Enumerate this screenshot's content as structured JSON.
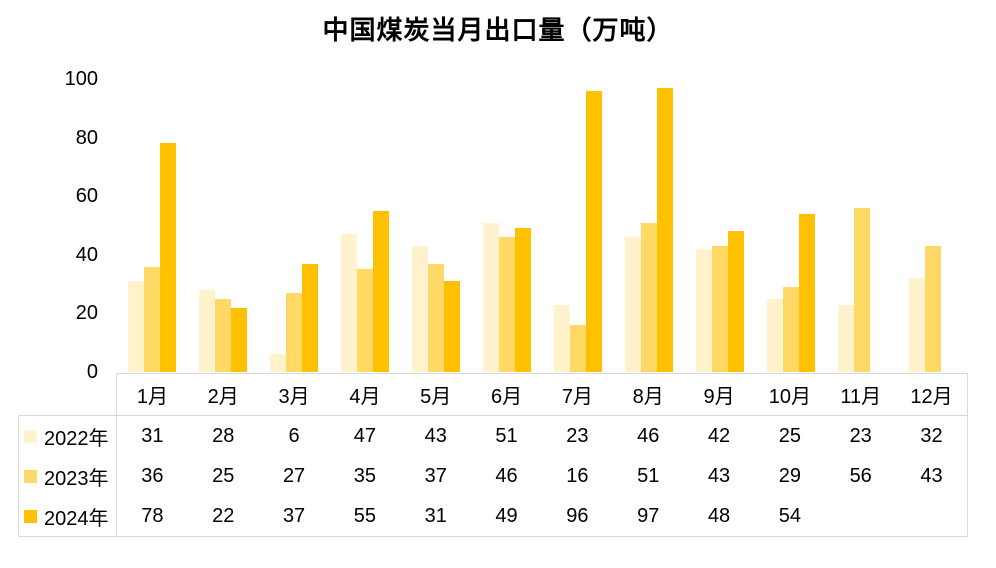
{
  "title": "中国煤炭当月出口量（万吨）",
  "colors": {
    "series_2022": "#FFF2CC",
    "series_2023": "#FFD966",
    "series_2024": "#FFC000",
    "table_border": "#D9D9D9",
    "text": "#000000",
    "background": "#FFFFFF"
  },
  "chart_data": {
    "type": "bar",
    "title": "中国煤炭当月出口量（万吨）",
    "categories": [
      "1月",
      "2月",
      "3月",
      "4月",
      "5月",
      "6月",
      "7月",
      "8月",
      "9月",
      "10月",
      "11月",
      "12月"
    ],
    "series": [
      {
        "name": "2022年",
        "color": "#FFF2CC",
        "values": [
          31,
          28,
          6,
          47,
          43,
          51,
          23,
          46,
          42,
          25,
          23,
          32
        ]
      },
      {
        "name": "2023年",
        "color": "#FFD966",
        "values": [
          36,
          25,
          27,
          35,
          37,
          46,
          16,
          51,
          43,
          29,
          56,
          43
        ]
      },
      {
        "name": "2024年",
        "color": "#FFC000",
        "values": [
          78,
          22,
          37,
          55,
          31,
          49,
          96,
          97,
          48,
          54,
          null,
          null
        ]
      }
    ],
    "xlabel": "",
    "ylabel": "",
    "y_axis": {
      "min": 0,
      "max": 100,
      "ticks": [
        0,
        20,
        40,
        60,
        80,
        100
      ]
    },
    "grid": false,
    "legend_position": "data-table-left",
    "data_table_shown": true
  }
}
